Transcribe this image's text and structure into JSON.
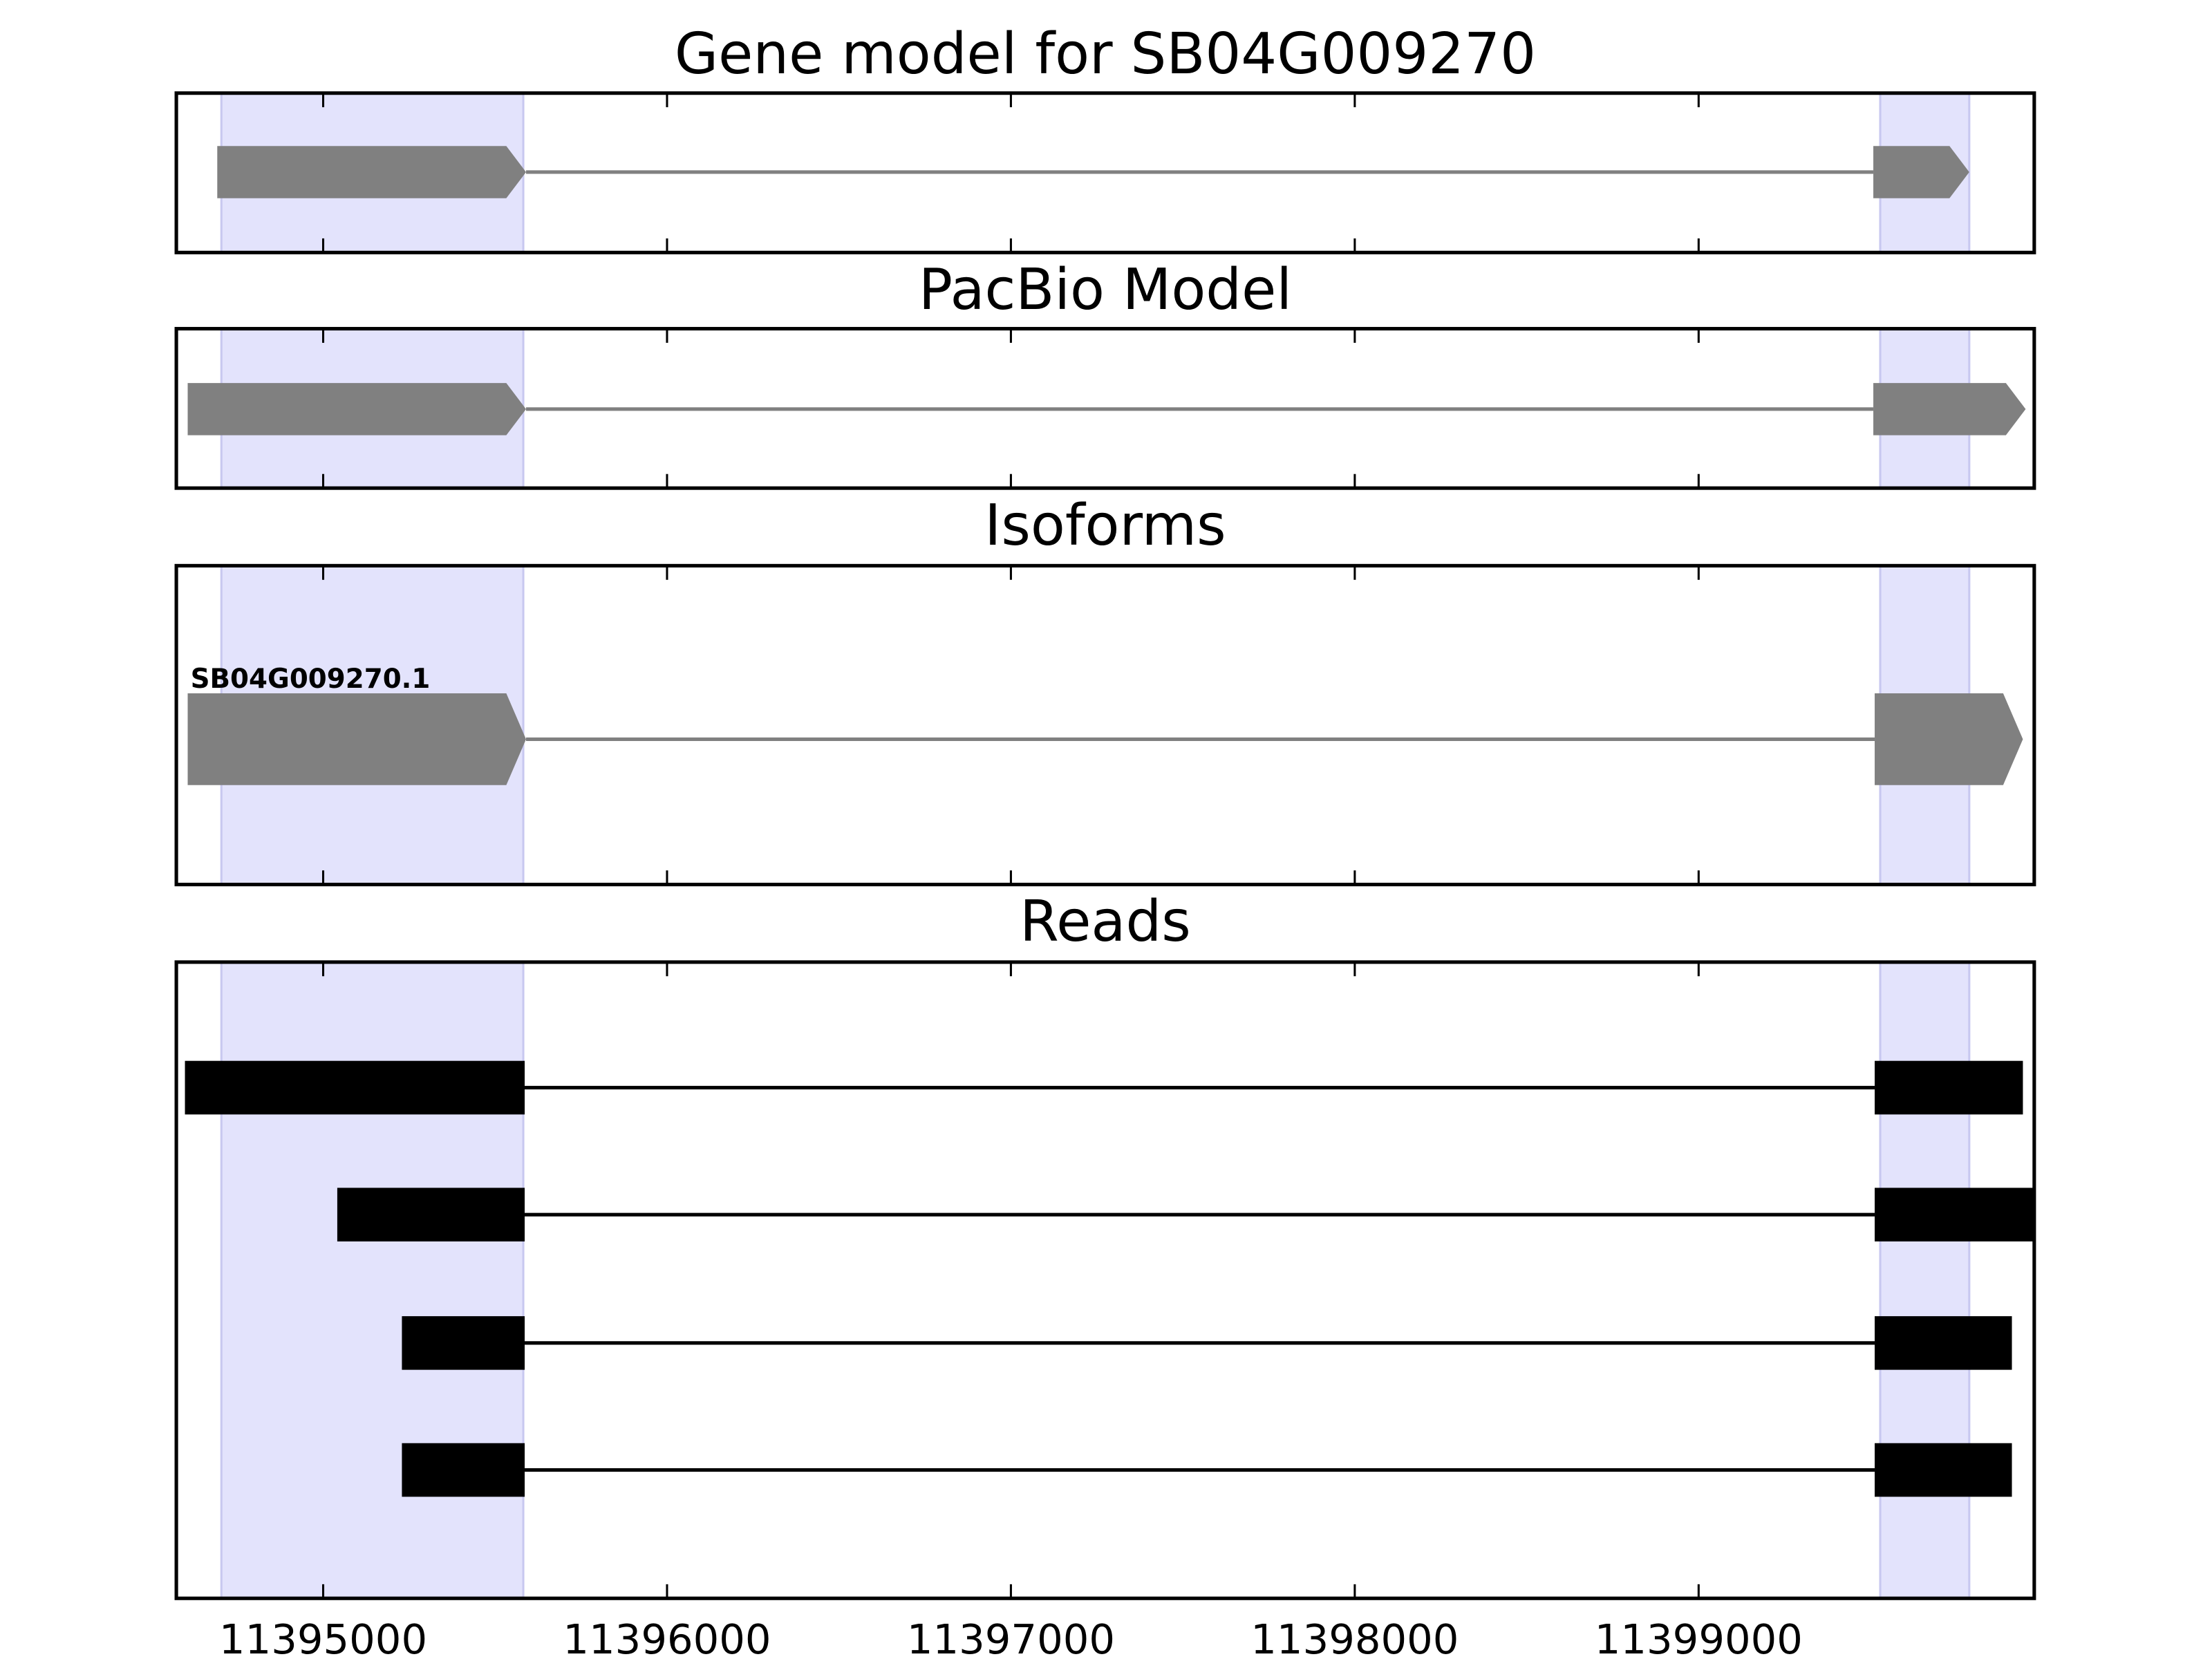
{
  "chart_data": {
    "type": "gene-structure",
    "xlim": [
      11394573,
      11399976
    ],
    "xticks": [
      11395000,
      11396000,
      11397000,
      11398000,
      11399000
    ],
    "xtick_labels": [
      "11395000",
      "11396000",
      "11397000",
      "11398000",
      "11399000"
    ],
    "highlight_color": "#e3e3fc",
    "highlight_regions": [
      [
        11394704,
        11395582
      ],
      [
        11399528,
        11399787
      ]
    ],
    "panels": [
      {
        "title": "Gene model for SB04G009270",
        "color": "#808080",
        "style": "arrow",
        "tracks": [
          {
            "label": "",
            "exons": [
              [
                11394692,
                11395590
              ],
              [
                11399508,
                11399787
              ]
            ]
          }
        ]
      },
      {
        "title": "PacBio Model",
        "color": "#808080",
        "style": "arrow",
        "tracks": [
          {
            "label": "",
            "exons": [
              [
                11394606,
                11395590
              ],
              [
                11399508,
                11399951
              ]
            ]
          }
        ]
      },
      {
        "title": "Isoforms",
        "color": "#808080",
        "style": "arrow",
        "tracks": [
          {
            "label": "SB04G009270.1",
            "exons": [
              [
                11394606,
                11395590
              ],
              [
                11399512,
                11399943
              ]
            ]
          }
        ]
      },
      {
        "title": "Reads",
        "color": "#000000",
        "style": "box",
        "tracks": [
          {
            "label": "",
            "exons": [
              [
                11394598,
                11395586
              ],
              [
                11399512,
                11399943
              ]
            ]
          },
          {
            "label": "",
            "exons": [
              [
                11395041,
                11395586
              ],
              [
                11399512,
                11399976
              ]
            ]
          },
          {
            "label": "",
            "exons": [
              [
                11395229,
                11395586
              ],
              [
                11399512,
                11399911
              ]
            ]
          },
          {
            "label": "",
            "exons": [
              [
                11395229,
                11395586
              ],
              [
                11399512,
                11399911
              ]
            ]
          }
        ]
      }
    ]
  }
}
